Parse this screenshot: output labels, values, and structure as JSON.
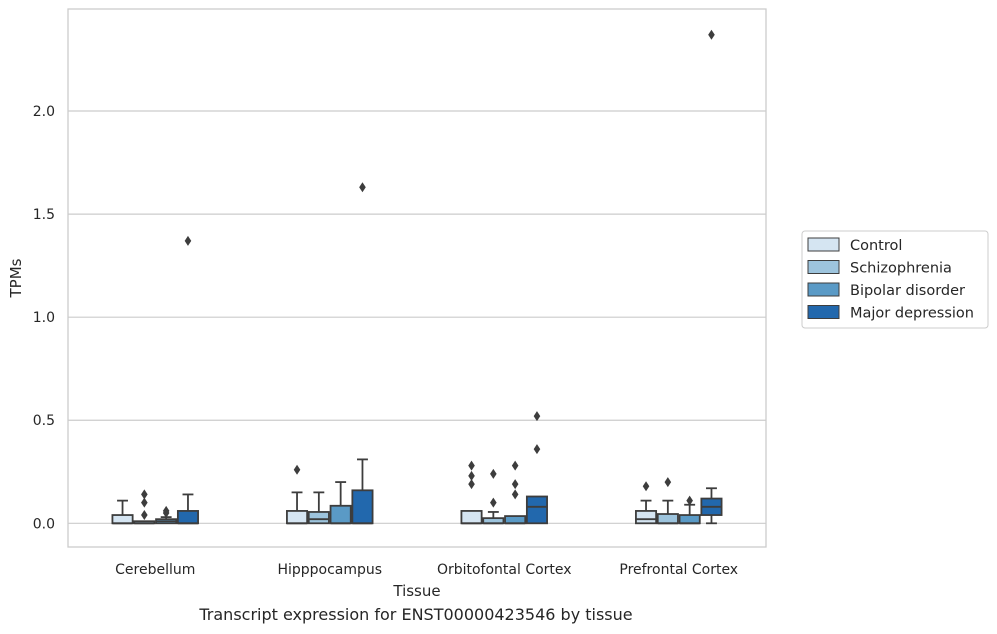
{
  "chart_data": {
    "type": "boxplot",
    "xlabel": "Tissue",
    "ylabel": "TPMs",
    "ylim": [
      -0.115,
      2.495
    ],
    "yticks": [
      0.0,
      0.5,
      1.0,
      1.5,
      2.0
    ],
    "ytick_labels": [
      "0.0",
      "0.5",
      "1.0",
      "1.5",
      "2.0"
    ],
    "grid": "horizontal",
    "legend_position": "right",
    "categories": [
      "Cerebellum",
      "Hipppocampus",
      "Orbitofontal Cortex",
      "Prefrontal Cortex"
    ],
    "series": [
      {
        "name": "Control",
        "color": "#d5e5f2",
        "boxes": [
          {
            "whislo": 0.0,
            "q1": 0.0,
            "med": 0.0,
            "q3": 0.04,
            "whishi": 0.11,
            "fliers": []
          },
          {
            "whislo": 0.0,
            "q1": 0.0,
            "med": 0.0,
            "q3": 0.06,
            "whishi": 0.15,
            "fliers": [
              0.26
            ]
          },
          {
            "whislo": 0.0,
            "q1": 0.0,
            "med": 0.0,
            "q3": 0.06,
            "whishi": 0.06,
            "fliers": [
              0.19,
              0.23,
              0.28
            ]
          },
          {
            "whislo": 0.0,
            "q1": 0.0,
            "med": 0.02,
            "q3": 0.06,
            "whishi": 0.11,
            "fliers": [
              0.18
            ]
          }
        ]
      },
      {
        "name": "Schizophrenia",
        "color": "#9dc4dd",
        "boxes": [
          {
            "whislo": 0.0,
            "q1": 0.0,
            "med": 0.0,
            "q3": 0.01,
            "whishi": 0.01,
            "fliers": [
              0.04,
              0.1,
              0.14
            ]
          },
          {
            "whislo": 0.0,
            "q1": 0.0,
            "med": 0.02,
            "q3": 0.055,
            "whishi": 0.15,
            "fliers": []
          },
          {
            "whislo": 0.0,
            "q1": 0.0,
            "med": 0.0,
            "q3": 0.025,
            "whishi": 0.055,
            "fliers": [
              0.1,
              0.24
            ]
          },
          {
            "whislo": 0.0,
            "q1": 0.0,
            "med": 0.0,
            "q3": 0.045,
            "whishi": 0.11,
            "fliers": [
              0.2
            ]
          }
        ]
      },
      {
        "name": "Bipolar disorder",
        "color": "#5a9ac6",
        "boxes": [
          {
            "whislo": 0.0,
            "q1": 0.0,
            "med": 0.01,
            "q3": 0.02,
            "whishi": 0.03,
            "fliers": [
              0.05,
              0.06
            ]
          },
          {
            "whislo": 0.0,
            "q1": 0.0,
            "med": 0.0,
            "q3": 0.085,
            "whishi": 0.2,
            "fliers": []
          },
          {
            "whislo": 0.0,
            "q1": 0.0,
            "med": 0.0,
            "q3": 0.035,
            "whishi": 0.035,
            "fliers": [
              0.14,
              0.19,
              0.28
            ]
          },
          {
            "whislo": 0.0,
            "q1": 0.0,
            "med": 0.0,
            "q3": 0.04,
            "whishi": 0.09,
            "fliers": [
              0.11
            ]
          }
        ]
      },
      {
        "name": "Major depression",
        "color": "#2268ad",
        "boxes": [
          {
            "whislo": 0.0,
            "q1": 0.0,
            "med": 0.0,
            "q3": 0.06,
            "whishi": 0.14,
            "fliers": [
              1.37
            ]
          },
          {
            "whislo": 0.0,
            "q1": 0.0,
            "med": 0.0,
            "q3": 0.16,
            "whishi": 0.31,
            "fliers": [
              1.63
            ]
          },
          {
            "whislo": 0.0,
            "q1": 0.0,
            "med": 0.08,
            "q3": 0.13,
            "whishi": 0.13,
            "fliers": [
              0.36,
              0.52
            ]
          },
          {
            "whislo": 0.0,
            "q1": 0.04,
            "med": 0.08,
            "q3": 0.12,
            "whishi": 0.17,
            "fliers": [
              2.37
            ]
          }
        ]
      }
    ]
  },
  "caption": "Transcript expression for ENST00000423546 by tissue"
}
